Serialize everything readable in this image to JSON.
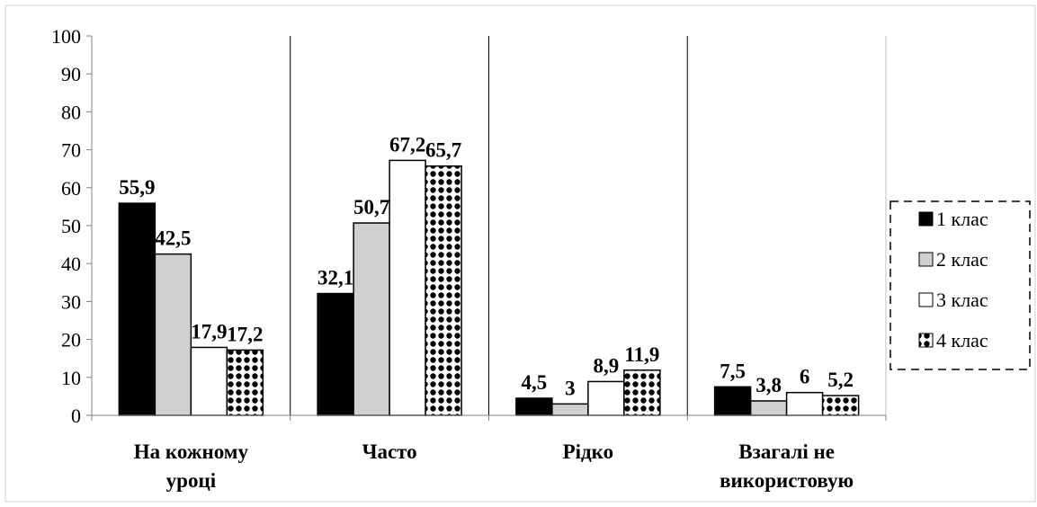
{
  "chart_data": {
    "type": "bar",
    "categories": [
      [
        "На кожному",
        "уроці"
      ],
      [
        "Часто"
      ],
      [
        "Рідко"
      ],
      [
        "Взагалі не",
        "використовую"
      ]
    ],
    "series": [
      {
        "name": "1 клас",
        "values": [
          55.9,
          32.1,
          4.5,
          7.5
        ],
        "labels": [
          "55,9",
          "32,1",
          "4,5",
          "7,5"
        ],
        "fill": "#000000",
        "pattern": "solid"
      },
      {
        "name": "2 клас",
        "values": [
          42.5,
          50.7,
          3,
          3.8
        ],
        "labels": [
          "42,5",
          "50,7",
          "3",
          "3,8"
        ],
        "fill": "#d0d0d0",
        "pattern": "solid"
      },
      {
        "name": "3 клас",
        "values": [
          17.9,
          67.2,
          8.9,
          6
        ],
        "labels": [
          "17,9",
          "67,2",
          "8,9",
          "6"
        ],
        "fill": "#ffffff",
        "pattern": "solid"
      },
      {
        "name": "4 клас",
        "values": [
          17.2,
          65.7,
          11.9,
          5.2
        ],
        "labels": [
          "17,2",
          "65,7",
          "11,9",
          "5,2"
        ],
        "fill": "#ffffff",
        "pattern": "dots"
      }
    ],
    "ylim": [
      0,
      100
    ],
    "yticks": [
      "0",
      "10",
      "20",
      "30",
      "40",
      "50",
      "60",
      "70",
      "80",
      "90",
      "100"
    ],
    "title": "",
    "xlabel": "",
    "ylabel": "",
    "grid": "vertical separators between categories",
    "legend_position": "right"
  }
}
